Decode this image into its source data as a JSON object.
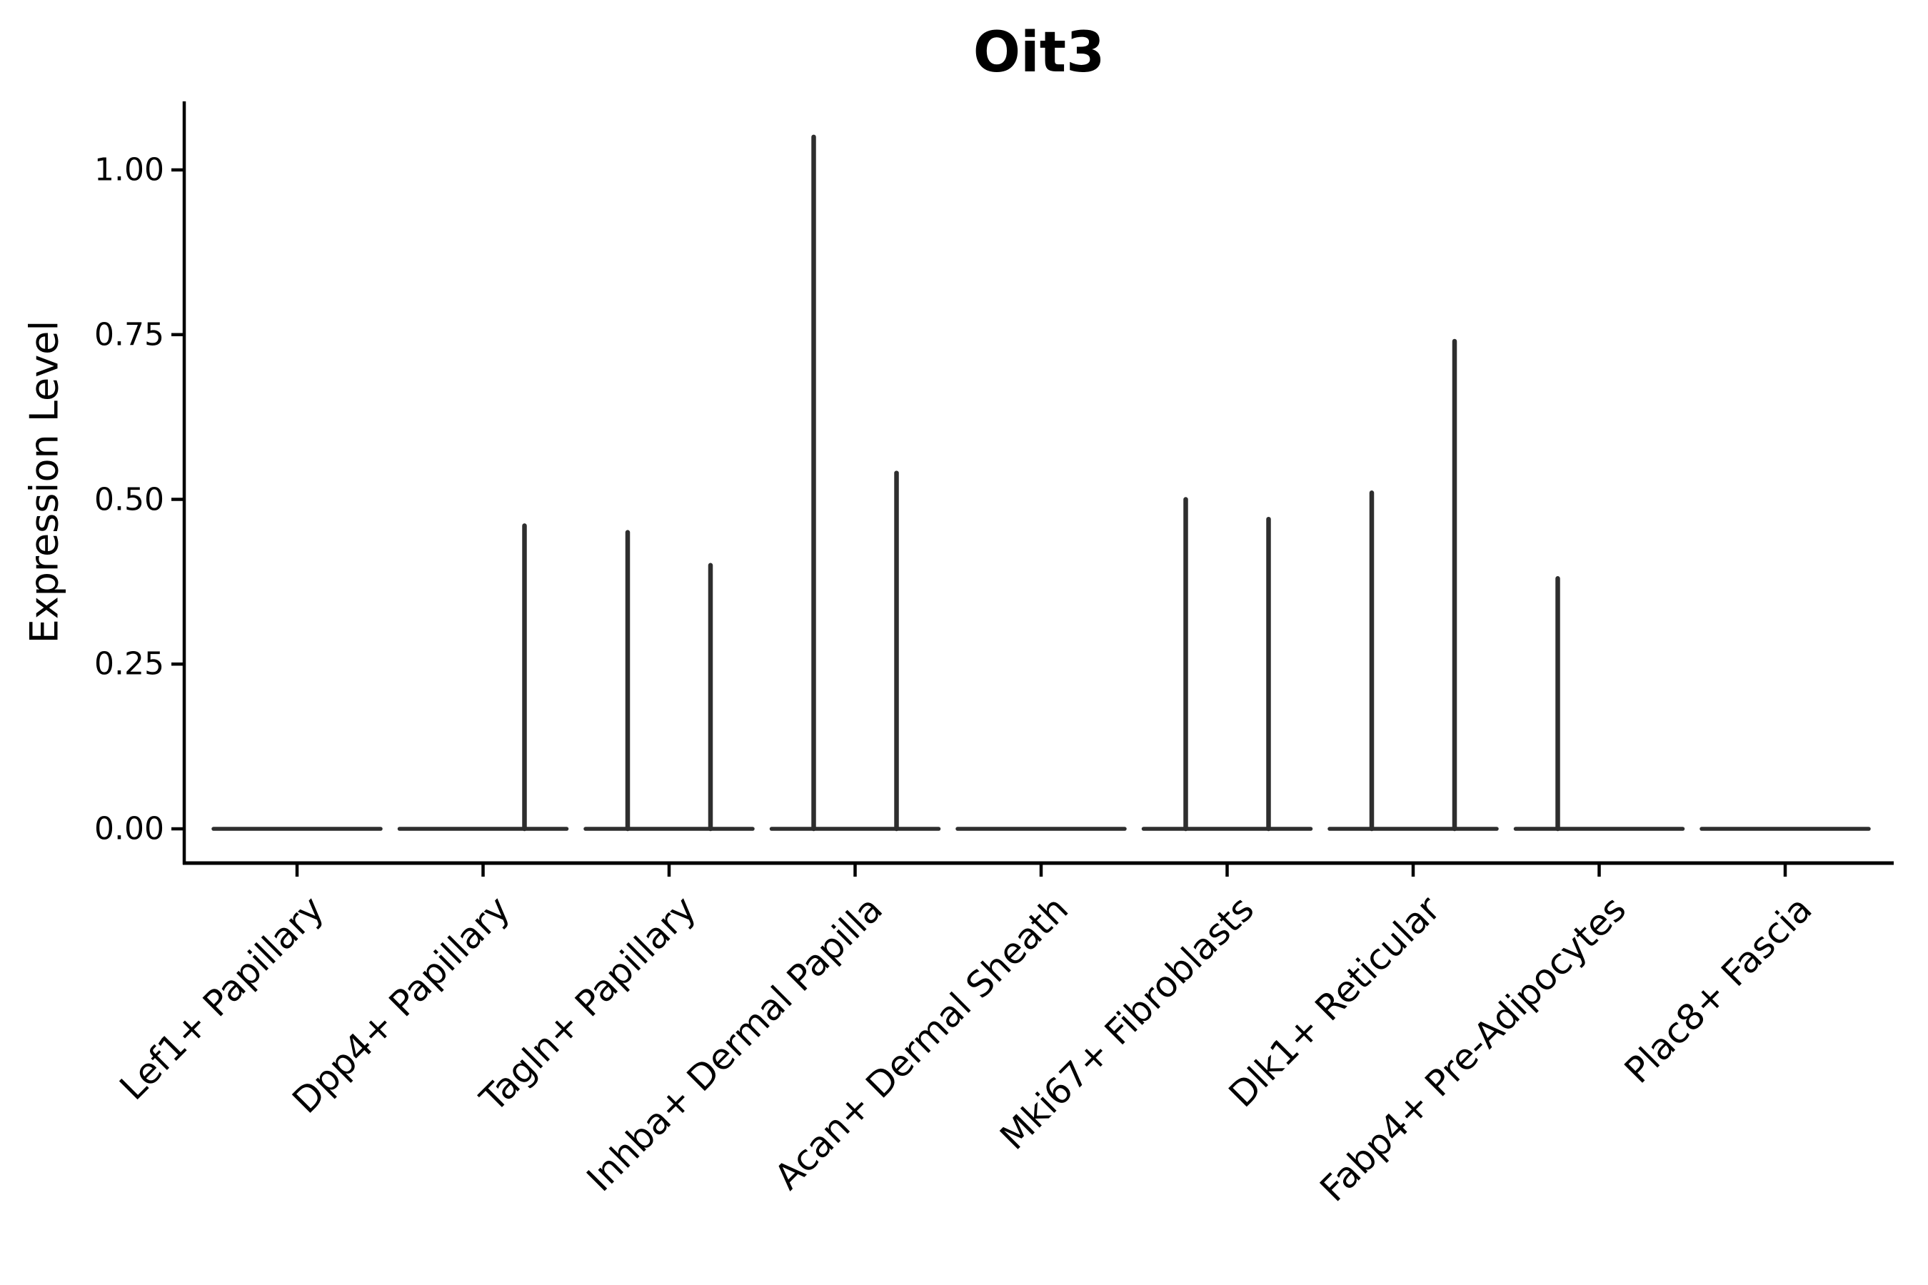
{
  "chart_data": {
    "type": "violin",
    "title": "Oit3",
    "xlabel": "",
    "ylabel": "Expression Level",
    "categories": [
      "Lef1+ Papillary",
      "Dpp4+ Papillary",
      "Tagln+ Papillary",
      "Inhba+ Dermal Papilla",
      "Acan+ Dermal Sheath",
      "Mki67+ Fibroblasts",
      "Dlk1+ Reticular",
      "Fabp4+ Pre-Adipocytes",
      "Plac8+ Fascia"
    ],
    "violins_per_category": 2,
    "baseline_value": 0,
    "max_expression": [
      [
        0,
        0
      ],
      [
        0,
        0.46
      ],
      [
        0.45,
        0.4
      ],
      [
        1.05,
        0.54
      ],
      [
        0,
        0
      ],
      [
        0.5,
        0.47
      ],
      [
        0.51,
        0.74
      ],
      [
        0.38,
        0
      ],
      [
        0,
        0
      ]
    ],
    "yticks": [
      0.0,
      0.25,
      0.5,
      0.75,
      1.0
    ],
    "ytick_labels": [
      "0.00",
      "0.25",
      "0.50",
      "0.75",
      "1.00"
    ],
    "ylim": [
      -0.05,
      1.1
    ],
    "grid": false,
    "legend": "none",
    "violin_color": "#2e2e2e",
    "axis_color": "#000000",
    "text_color": "#000000",
    "background_color": "#ffffff"
  }
}
